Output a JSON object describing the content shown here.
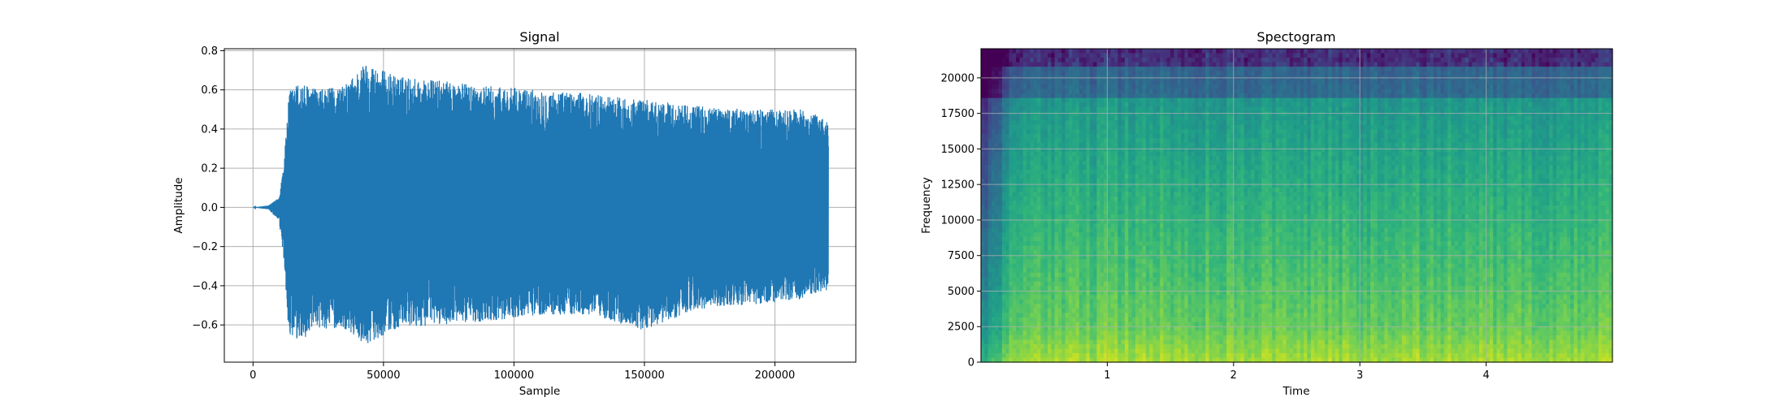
{
  "chart_data": [
    {
      "type": "line",
      "title": "Signal",
      "xlabel": "Sample",
      "ylabel": "Amplitude",
      "xlim": [
        -11000,
        231000
      ],
      "ylim": [
        -0.79,
        0.81
      ],
      "x_ticks": [
        0,
        50000,
        100000,
        150000,
        200000
      ],
      "x_tick_labels": [
        "0",
        "50000",
        "100000",
        "150000",
        "200000"
      ],
      "y_ticks": [
        -0.6,
        -0.4,
        -0.2,
        0.0,
        0.2,
        0.4,
        0.6,
        0.8
      ],
      "y_tick_labels": [
        "−0.6",
        "−0.4",
        "−0.2",
        "0.0",
        "0.2",
        "0.4",
        "0.6",
        "0.8"
      ],
      "grid": true,
      "color": "#1f77b4",
      "n_samples": 220500,
      "envelope": {
        "x": [
          0,
          6000,
          10000,
          12000,
          13000,
          14000,
          18000,
          25000,
          35000,
          43000,
          55000,
          70000,
          90000,
          110000,
          130000,
          150000,
          170000,
          190000,
          210000,
          220500
        ],
        "upper": [
          0.0,
          0.01,
          0.05,
          0.25,
          0.45,
          0.6,
          0.64,
          0.6,
          0.62,
          0.74,
          0.67,
          0.65,
          0.62,
          0.6,
          0.58,
          0.55,
          0.52,
          0.5,
          0.5,
          0.45
        ],
        "lower": [
          0.0,
          -0.01,
          -0.07,
          -0.3,
          -0.5,
          -0.7,
          -0.68,
          -0.62,
          -0.62,
          -0.7,
          -0.62,
          -0.6,
          -0.58,
          -0.55,
          -0.55,
          -0.63,
          -0.52,
          -0.5,
          -0.47,
          -0.42
        ]
      }
    },
    {
      "type": "heatmap",
      "title": "Spectogram",
      "xlabel": "Time",
      "ylabel": "Frequency",
      "xlim": [
        0,
        5.0
      ],
      "ylim": [
        0,
        22050
      ],
      "x_ticks": [
        1,
        2,
        3,
        4
      ],
      "x_tick_labels": [
        "1",
        "2",
        "3",
        "4"
      ],
      "y_ticks": [
        0,
        2500,
        5000,
        7500,
        10000,
        12500,
        15000,
        17500,
        20000
      ],
      "y_tick_labels": [
        "0",
        "2500",
        "5000",
        "7500",
        "10000",
        "12500",
        "15000",
        "17500",
        "20000"
      ],
      "grid": true,
      "colormap": "viridis"
    }
  ]
}
